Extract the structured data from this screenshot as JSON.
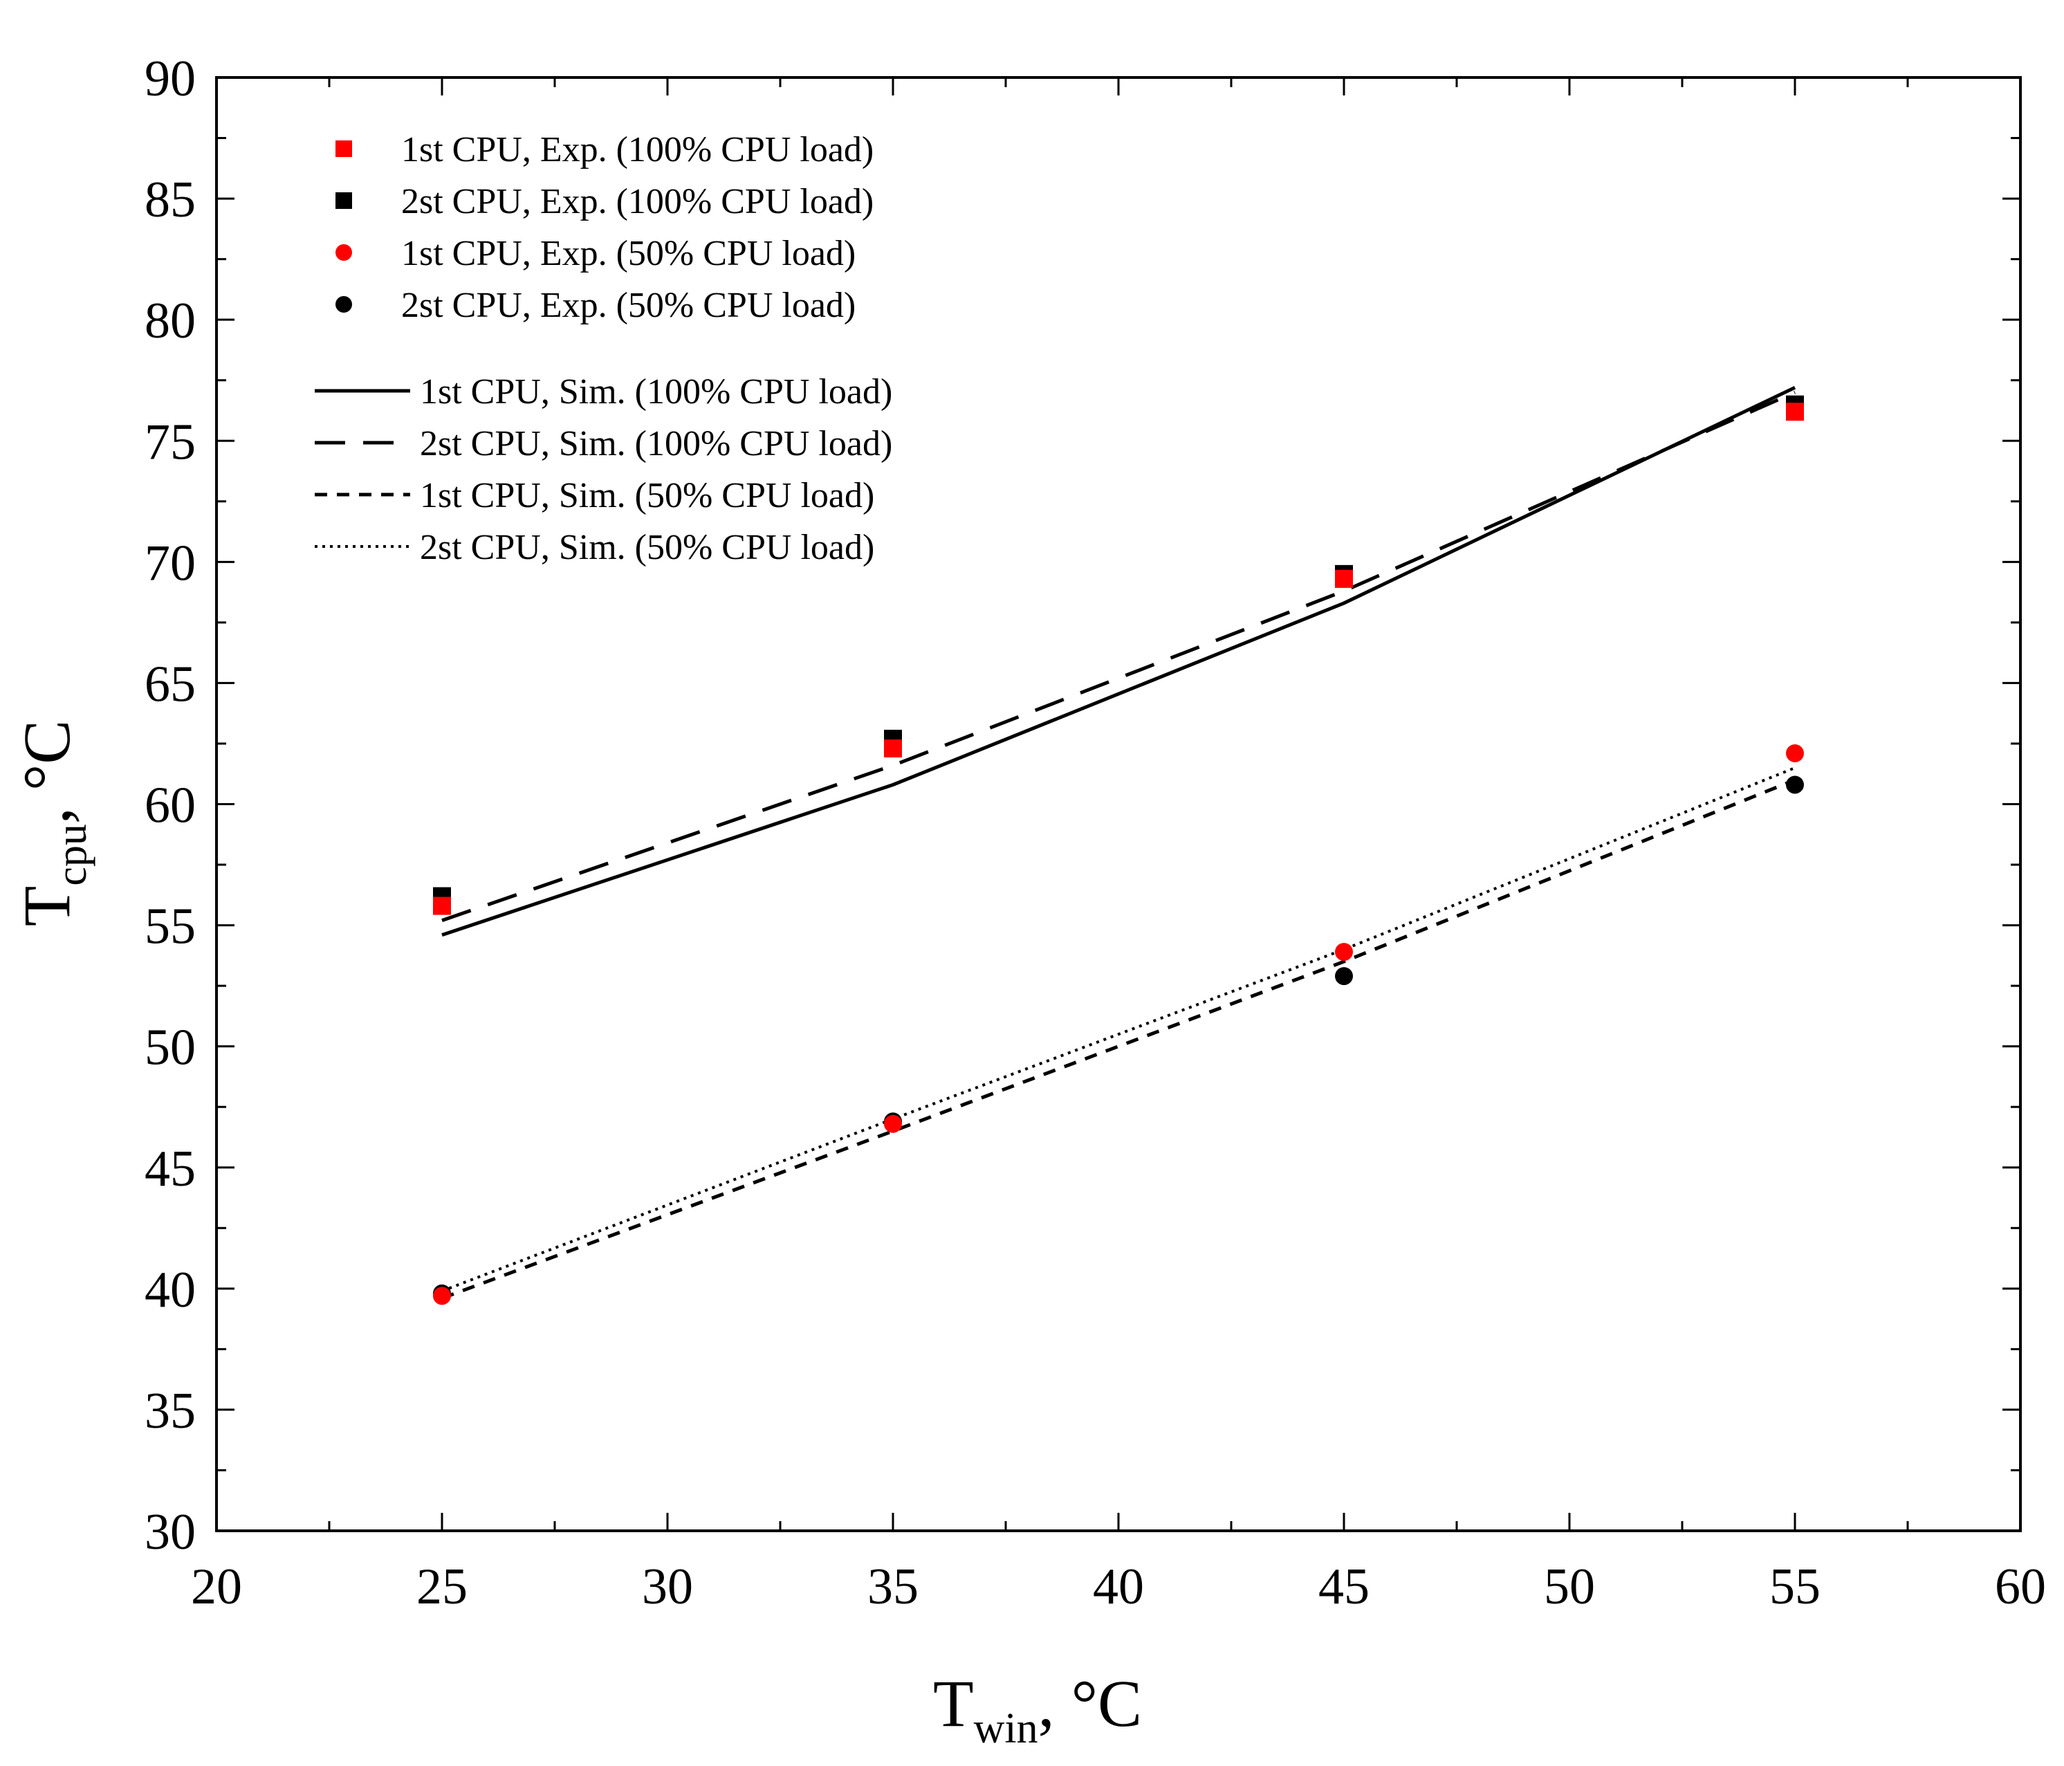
{
  "chart_data": {
    "type": "line",
    "title": "",
    "xlabel": {
      "main": "T",
      "sub": "win",
      "unit": ", °C"
    },
    "ylabel": {
      "main": "T",
      "sub": "cpu",
      "unit": ", °C"
    },
    "xlim": [
      20,
      60
    ],
    "ylim": [
      30,
      90
    ],
    "xticks": [
      20,
      25,
      30,
      35,
      40,
      45,
      50,
      55,
      60
    ],
    "yticks": [
      30,
      35,
      40,
      45,
      50,
      55,
      60,
      65,
      70,
      75,
      80,
      85,
      90
    ],
    "grid": false,
    "legend_position": "top-left",
    "colors": {
      "red": "#ff0000",
      "black": "#000000"
    },
    "series": [
      {
        "name": "1st CPU, Exp. (100% CPU load)",
        "kind": "marker",
        "marker": "square",
        "color": "#ff0000",
        "x": [
          25,
          35,
          45,
          55
        ],
        "y": [
          55.8,
          62.3,
          69.3,
          76.2
        ]
      },
      {
        "name": "2st CPU, Exp. (100% CPU load)",
        "kind": "marker",
        "marker": "square",
        "color": "#000000",
        "x": [
          25,
          35,
          45,
          55
        ],
        "y": [
          56.2,
          62.7,
          69.5,
          76.5
        ]
      },
      {
        "name": "1st CPU, Exp. (50% CPU load)",
        "kind": "marker",
        "marker": "circle",
        "color": "#ff0000",
        "x": [
          25,
          35,
          45,
          55
        ],
        "y": [
          39.7,
          46.8,
          53.9,
          62.1
        ]
      },
      {
        "name": "2st CPU, Exp. (50% CPU load)",
        "kind": "marker",
        "marker": "circle",
        "color": "#000000",
        "x": [
          25,
          35,
          45,
          55
        ],
        "y": [
          39.8,
          46.9,
          52.9,
          60.8
        ]
      },
      {
        "name": "1st CPU, Sim. (100% CPU load)",
        "kind": "line",
        "dash": "solid",
        "color": "#000000",
        "x": [
          25,
          35,
          45,
          55
        ],
        "y": [
          54.6,
          60.8,
          68.3,
          77.2
        ]
      },
      {
        "name": "2st CPU, Sim. (100% CPU load)",
        "kind": "line",
        "dash": "long",
        "color": "#000000",
        "x": [
          25,
          35,
          45,
          55
        ],
        "y": [
          55.2,
          61.6,
          68.8,
          77.0
        ]
      },
      {
        "name": "1st CPU, Sim. (50% CPU load)",
        "kind": "line",
        "dash": "short",
        "color": "#000000",
        "x": [
          25,
          35,
          45,
          55
        ],
        "y": [
          39.6,
          46.5,
          53.5,
          61.0
        ]
      },
      {
        "name": "2st CPU, Sim. (50% CPU load)",
        "kind": "line",
        "dash": "dot",
        "color": "#000000",
        "x": [
          25,
          35,
          45,
          55
        ],
        "y": [
          39.9,
          47.0,
          54.0,
          61.5
        ]
      }
    ]
  }
}
